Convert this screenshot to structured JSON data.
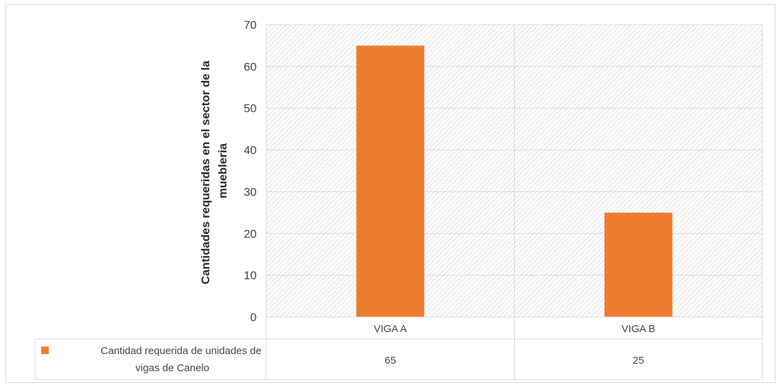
{
  "chart_data": {
    "type": "bar",
    "title": "",
    "xlabel": "",
    "ylabel_lines": [
      "Cantidades requeridas en el sector de la",
      "muebleria"
    ],
    "categories": [
      "VIGA A",
      "VIGA B"
    ],
    "series": [
      {
        "name_lines": [
          "Cantidad requerida de unidades de",
          "vigas de Canelo"
        ],
        "color": "#ED7D31",
        "values": [
          65,
          25
        ]
      }
    ],
    "ylim": [
      0,
      70
    ],
    "yticks": [
      0,
      10,
      20,
      30,
      40,
      50,
      60,
      70
    ],
    "grid": true,
    "plot_area_pattern": "diagonal-hatch",
    "data_table": true
  }
}
